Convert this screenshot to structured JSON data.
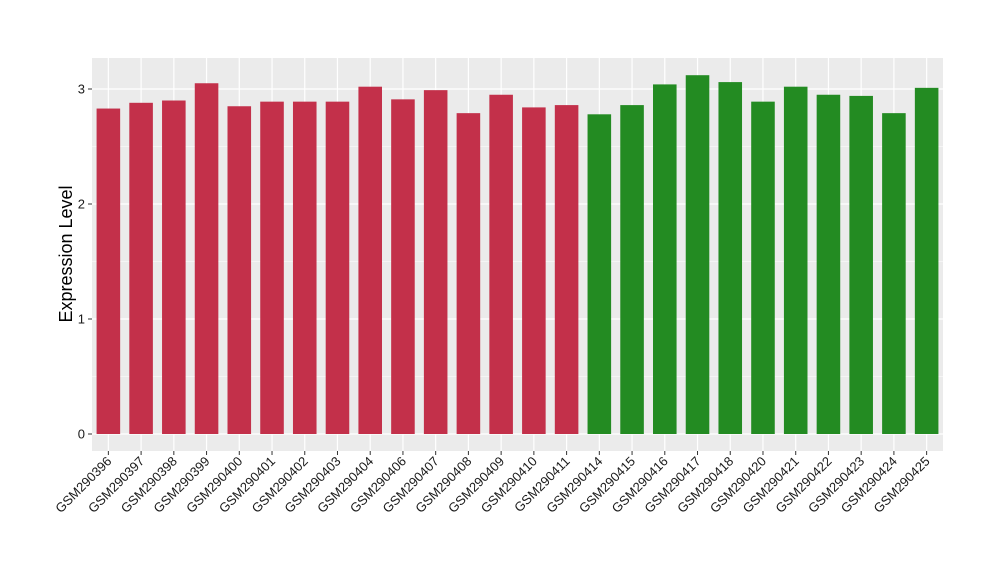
{
  "chart_data": {
    "type": "bar",
    "title": "",
    "xlabel": "",
    "ylabel": "Expression Level",
    "ylim": [
      0,
      3.2
    ],
    "yticks": [
      0,
      1,
      2,
      3
    ],
    "grid": true,
    "legend": "none",
    "colors": {
      "group_a": "#C3304A",
      "group_b": "#238B22",
      "panel_background": "#EBEBEB",
      "grid": "#FFFFFF"
    },
    "categories": [
      "GSM290396",
      "GSM290397",
      "GSM290398",
      "GSM290399",
      "GSM290400",
      "GSM290401",
      "GSM290402",
      "GSM290403",
      "GSM290404",
      "GSM290406",
      "GSM290407",
      "GSM290408",
      "GSM290409",
      "GSM290410",
      "GSM290411",
      "GSM290414",
      "GSM290415",
      "GSM290416",
      "GSM290417",
      "GSM290418",
      "GSM290420",
      "GSM290421",
      "GSM290422",
      "GSM290423",
      "GSM290424",
      "GSM290425"
    ],
    "values": [
      2.83,
      2.88,
      2.9,
      3.05,
      2.85,
      2.89,
      2.89,
      2.89,
      3.02,
      2.91,
      2.99,
      2.79,
      2.95,
      2.84,
      2.86,
      2.78,
      2.86,
      3.04,
      3.12,
      3.06,
      2.89,
      3.02,
      2.95,
      2.94,
      2.79,
      3.01
    ],
    "bar_colors": [
      "#C3304A",
      "#C3304A",
      "#C3304A",
      "#C3304A",
      "#C3304A",
      "#C3304A",
      "#C3304A",
      "#C3304A",
      "#C3304A",
      "#C3304A",
      "#C3304A",
      "#C3304A",
      "#C3304A",
      "#C3304A",
      "#C3304A",
      "#238B22",
      "#238B22",
      "#238B22",
      "#238B22",
      "#238B22",
      "#238B22",
      "#238B22",
      "#238B22",
      "#238B22",
      "#238B22",
      "#238B22"
    ]
  }
}
